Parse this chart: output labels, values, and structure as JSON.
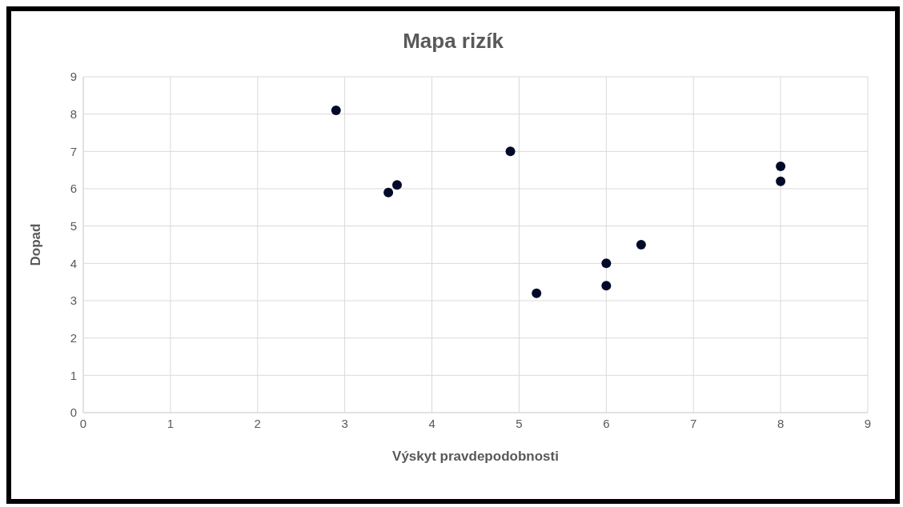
{
  "chart_data": {
    "type": "scatter",
    "title": "Mapa rizík",
    "xlabel": "Výskyt pravdepodobnosti",
    "ylabel": "Dopad",
    "x": [
      2.9,
      3.5,
      3.6,
      4.9,
      5.2,
      6,
      6,
      6.4,
      8,
      8
    ],
    "values": [
      8.1,
      5.9,
      6.1,
      7.0,
      3.2,
      4.0,
      3.4,
      4.5,
      6.6,
      6.2
    ],
    "color": "#020a2a",
    "marker": "circle",
    "xlim": [
      0,
      9
    ],
    "xticks": [
      0,
      1,
      2,
      3,
      4,
      5,
      6,
      7,
      8,
      9
    ],
    "ylim": [
      0,
      9
    ],
    "yticks": [
      0,
      1,
      2,
      3,
      4,
      5,
      6,
      7,
      8,
      9
    ],
    "grid": true,
    "legend": false
  }
}
